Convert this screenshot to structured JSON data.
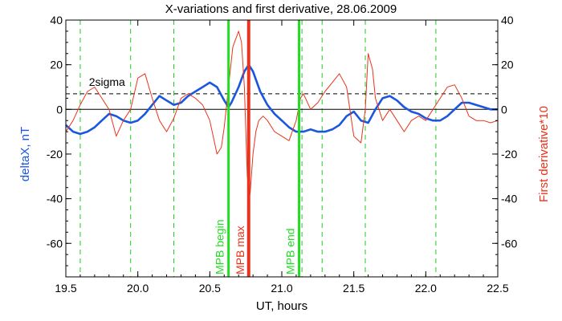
{
  "chart_data": {
    "type": "line",
    "title": "X-variations and first derivative, 28.06.2009",
    "xlabel": "UT, hours",
    "ylabel_left": "deltaX, nT",
    "ylabel_right": "First derivative*10",
    "xlim": [
      19.5,
      22.5
    ],
    "ylim": [
      -75,
      40
    ],
    "xticks": [
      19.5,
      20.0,
      20.5,
      21.0,
      21.5,
      22.0,
      22.5
    ],
    "xtick_labels": [
      "19.5",
      "20.0",
      "20.5",
      "21.0",
      "21.5",
      "22.0",
      "22.5"
    ],
    "yticks": [
      40,
      20,
      0,
      -20,
      -40,
      -60
    ],
    "ytick_labels": [
      "40",
      "20",
      "0",
      "-20",
      "-40",
      "-60"
    ],
    "zero_line": 0,
    "sigma_level": 7,
    "sigma_label": "2sigma",
    "colors": {
      "deltaX": "#1a56e0",
      "derivative": "#e8341c",
      "mpb_edge": "#22dd22",
      "mpb_max": "#e8341c",
      "dashed_markers": "#22cc22"
    },
    "dashed_markers": [
      19.6,
      19.95,
      20.25,
      20.63,
      21.14,
      21.28,
      21.58,
      22.07
    ],
    "markers": [
      {
        "x": 20.63,
        "label": "MPB begin",
        "color": "#22dd22",
        "width": 3
      },
      {
        "x": 20.77,
        "label": "MPB max",
        "color": "#e8341c",
        "width": 4
      },
      {
        "x": 21.12,
        "label": "MPB end",
        "color": "#22dd22",
        "width": 3
      }
    ],
    "series": [
      {
        "name": "deltaX",
        "axis": "left",
        "color": "#1a56e0",
        "x": [
          19.5,
          19.55,
          19.6,
          19.65,
          19.7,
          19.75,
          19.8,
          19.85,
          19.9,
          19.95,
          20.0,
          20.05,
          20.1,
          20.15,
          20.2,
          20.25,
          20.3,
          20.35,
          20.4,
          20.45,
          20.5,
          20.55,
          20.6,
          20.63,
          20.65,
          20.7,
          20.74,
          20.77,
          20.8,
          20.85,
          20.9,
          20.95,
          21.0,
          21.05,
          21.1,
          21.15,
          21.2,
          21.25,
          21.3,
          21.35,
          21.4,
          21.45,
          21.5,
          21.55,
          21.6,
          21.65,
          21.7,
          21.75,
          21.8,
          21.85,
          21.9,
          21.95,
          22.0,
          22.05,
          22.1,
          22.15,
          22.2,
          22.25,
          22.3,
          22.35,
          22.4,
          22.45,
          22.5
        ],
        "values": [
          -7,
          -10,
          -11,
          -10,
          -8,
          -5,
          -2,
          -3,
          -5,
          -6,
          -5,
          -2,
          2,
          6,
          4,
          2,
          3,
          6,
          8,
          10,
          12,
          10,
          4,
          1,
          3,
          10,
          17,
          20,
          17,
          8,
          2,
          -2,
          -5,
          -8,
          -10,
          -10,
          -9,
          -10,
          -10,
          -9,
          -7,
          -3,
          -1,
          -5,
          -6,
          0,
          5,
          6,
          4,
          1,
          -1,
          -2,
          -4,
          -5,
          -5,
          -3,
          0,
          3,
          3,
          2,
          1,
          0,
          0
        ]
      },
      {
        "name": "First derivative*10",
        "axis": "right",
        "color": "#e8341c",
        "x": [
          19.5,
          19.55,
          19.6,
          19.65,
          19.7,
          19.75,
          19.8,
          19.85,
          19.9,
          19.95,
          20.0,
          20.05,
          20.1,
          20.15,
          20.2,
          20.25,
          20.3,
          20.35,
          20.4,
          20.45,
          20.5,
          20.55,
          20.58,
          20.6,
          20.63,
          20.66,
          20.7,
          20.72,
          20.74,
          20.76,
          20.78,
          20.8,
          20.82,
          20.84,
          20.87,
          20.9,
          20.95,
          21.0,
          21.05,
          21.1,
          21.13,
          21.15,
          21.2,
          21.25,
          21.3,
          21.35,
          21.4,
          21.45,
          21.5,
          21.55,
          21.58,
          21.6,
          21.63,
          21.65,
          21.7,
          21.75,
          21.8,
          21.85,
          21.9,
          21.95,
          22.0,
          22.05,
          22.1,
          22.15,
          22.2,
          22.25,
          22.3,
          22.35,
          22.4,
          22.45,
          22.5
        ],
        "values": [
          -10,
          -5,
          2,
          8,
          10,
          5,
          0,
          -12,
          -5,
          0,
          14,
          16,
          5,
          -5,
          -10,
          -4,
          5,
          7,
          5,
          2,
          -5,
          -20,
          -17,
          -8,
          10,
          28,
          35,
          30,
          10,
          -30,
          -38,
          -20,
          -10,
          -5,
          -3,
          -5,
          -10,
          -12,
          -14,
          -5,
          5,
          7,
          0,
          3,
          8,
          12,
          16,
          10,
          -12,
          -15,
          0,
          25,
          18,
          5,
          -5,
          0,
          -5,
          -10,
          -5,
          -3,
          -5,
          0,
          5,
          10,
          11,
          5,
          -3,
          -5,
          -5,
          -6,
          -5
        ]
      }
    ]
  }
}
